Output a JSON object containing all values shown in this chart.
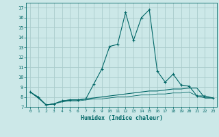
{
  "xlabel": "Humidex (Indice chaleur)",
  "bg_color": "#cce8e8",
  "grid_color": "#aacccc",
  "line_color": "#006666",
  "xlim": [
    -0.5,
    23.5
  ],
  "ylim": [
    7.0,
    17.5
  ],
  "yticks": [
    7,
    8,
    9,
    10,
    11,
    12,
    13,
    14,
    15,
    16,
    17
  ],
  "xticks": [
    0,
    1,
    2,
    3,
    4,
    5,
    6,
    7,
    8,
    9,
    10,
    11,
    12,
    13,
    14,
    15,
    16,
    17,
    18,
    19,
    20,
    21,
    22,
    23
  ],
  "series1_x": [
    0,
    1,
    2,
    3,
    4,
    5,
    6,
    7,
    8,
    9,
    10,
    11,
    12,
    13,
    14,
    15,
    16,
    17,
    18,
    19,
    20,
    21,
    22,
    23
  ],
  "series1_y": [
    8.5,
    8.0,
    7.2,
    7.3,
    7.6,
    7.7,
    7.7,
    7.8,
    9.3,
    10.8,
    13.1,
    13.3,
    16.5,
    13.7,
    16.0,
    16.8,
    10.6,
    9.5,
    10.3,
    9.2,
    9.1,
    8.1,
    8.1,
    7.9
  ],
  "series2_x": [
    0,
    1,
    2,
    3,
    4,
    5,
    6,
    7,
    8,
    9,
    10,
    11,
    12,
    13,
    14,
    15,
    16,
    17,
    18,
    19,
    20,
    21,
    22,
    23
  ],
  "series2_y": [
    8.5,
    7.9,
    7.2,
    7.3,
    7.6,
    7.7,
    7.7,
    7.8,
    7.9,
    8.0,
    8.1,
    8.2,
    8.3,
    8.4,
    8.5,
    8.6,
    8.6,
    8.7,
    8.8,
    8.8,
    8.9,
    8.9,
    7.9,
    7.9
  ],
  "series3_x": [
    0,
    1,
    2,
    3,
    4,
    5,
    6,
    7,
    8,
    9,
    10,
    11,
    12,
    13,
    14,
    15,
    16,
    17,
    18,
    19,
    20,
    21,
    22,
    23
  ],
  "series3_y": [
    8.5,
    7.9,
    7.2,
    7.3,
    7.5,
    7.6,
    7.6,
    7.7,
    7.8,
    7.8,
    7.9,
    8.0,
    8.0,
    8.1,
    8.2,
    8.2,
    8.3,
    8.3,
    8.4,
    8.4,
    8.5,
    8.1,
    7.9,
    7.9
  ]
}
